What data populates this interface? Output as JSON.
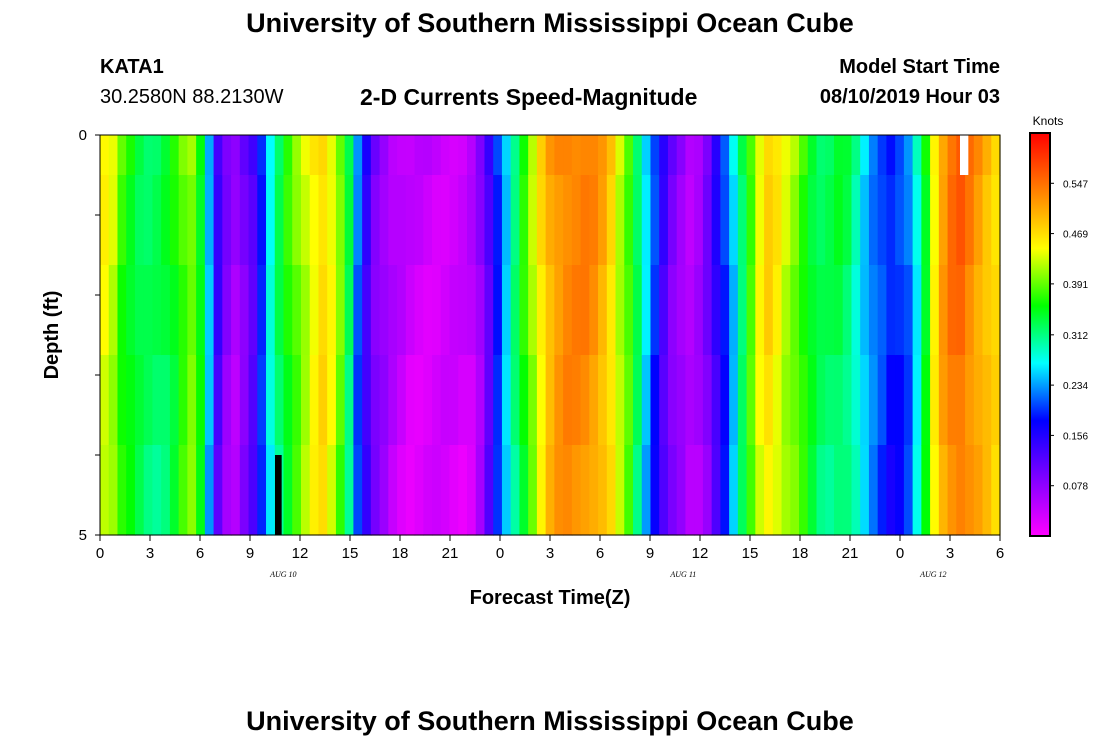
{
  "header": {
    "title": "University of Southern Mississippi Ocean Cube",
    "station_id": "KATA1",
    "station_coords": "30.2580N 88.2130W",
    "subtitle": "2-D Currents Speed-Magnitude",
    "model_start_label": "Model Start Time",
    "model_start_value": "08/10/2019 Hour 03"
  },
  "footer": {
    "title": "University of Southern Mississippi Ocean Cube"
  },
  "chart_data": {
    "type": "heatmap",
    "title": "2-D Currents Speed-Magnitude",
    "xlabel": "Forecast Time(Z)",
    "ylabel": "Depth (ft)",
    "x_ticks": [
      "0",
      "3",
      "6",
      "9",
      "12",
      "15",
      "18",
      "21",
      "0",
      "3",
      "6",
      "9",
      "12",
      "15",
      "18",
      "21",
      "0",
      "3",
      "6"
    ],
    "x_date_labels": [
      {
        "label": "AUG 10",
        "at_hour": 11
      },
      {
        "label": "AUG 11",
        "at_hour": 35
      },
      {
        "label": "AUG 12",
        "at_hour": 50
      }
    ],
    "x_range_hours": [
      0,
      54
    ],
    "y_ticks": [
      "0",
      "5"
    ],
    "y_range": [
      0,
      5
    ],
    "depth_layer_count": 5,
    "colorbar": {
      "label": "Knots",
      "ticks": [
        "0.547",
        "0.469",
        "0.391",
        "0.312",
        "0.234",
        "0.156",
        "0.078"
      ],
      "tick_values": [
        0.547,
        0.469,
        0.391,
        0.312,
        0.234,
        0.156,
        0.078
      ],
      "range": [
        0,
        0.625
      ],
      "colors": [
        "#ff00ff",
        "#8000ff",
        "#0000ff",
        "#00ffff",
        "#00ff00",
        "#ffff00",
        "#ff8000",
        "#ff0000"
      ]
    },
    "column_speeds_knots": [
      0.45,
      0.43,
      0.38,
      0.36,
      0.34,
      0.33,
      0.33,
      0.34,
      0.36,
      0.39,
      0.41,
      0.36,
      0.25,
      0.14,
      0.09,
      0.07,
      0.1,
      0.13,
      0.2,
      0.28,
      0.33,
      0.37,
      0.4,
      0.43,
      0.46,
      0.48,
      0.45,
      0.4,
      0.33,
      0.22,
      0.15,
      0.1,
      0.08,
      0.06,
      0.05,
      0.04,
      0.04,
      0.04,
      0.04,
      0.04,
      0.04,
      0.04,
      0.05,
      0.08,
      0.13,
      0.2,
      0.26,
      0.32,
      0.37,
      0.42,
      0.47,
      0.51,
      0.53,
      0.54,
      0.54,
      0.54,
      0.53,
      0.51,
      0.48,
      0.43,
      0.39,
      0.33,
      0.26,
      0.2,
      0.14,
      0.1,
      0.08,
      0.06,
      0.07,
      0.1,
      0.15,
      0.2,
      0.26,
      0.33,
      0.39,
      0.45,
      0.48,
      0.46,
      0.43,
      0.41,
      0.38,
      0.35,
      0.33,
      0.33,
      0.34,
      0.33,
      0.3,
      0.26,
      0.23,
      0.21,
      0.19,
      0.2,
      0.22,
      0.28,
      0.36,
      0.46,
      0.52,
      0.55,
      0.56,
      0.54,
      0.52,
      0.5,
      0.48
    ],
    "notes_no_data": [
      {
        "hour_start": 10.5,
        "hour_end": 10.9,
        "depth_start": 4.0,
        "depth_end": 5.0,
        "color": "#000000"
      },
      {
        "hour_start": 51.6,
        "hour_end": 52.1,
        "depth_start": 0.0,
        "depth_end": 0.5,
        "color": "#ffffff"
      }
    ]
  }
}
